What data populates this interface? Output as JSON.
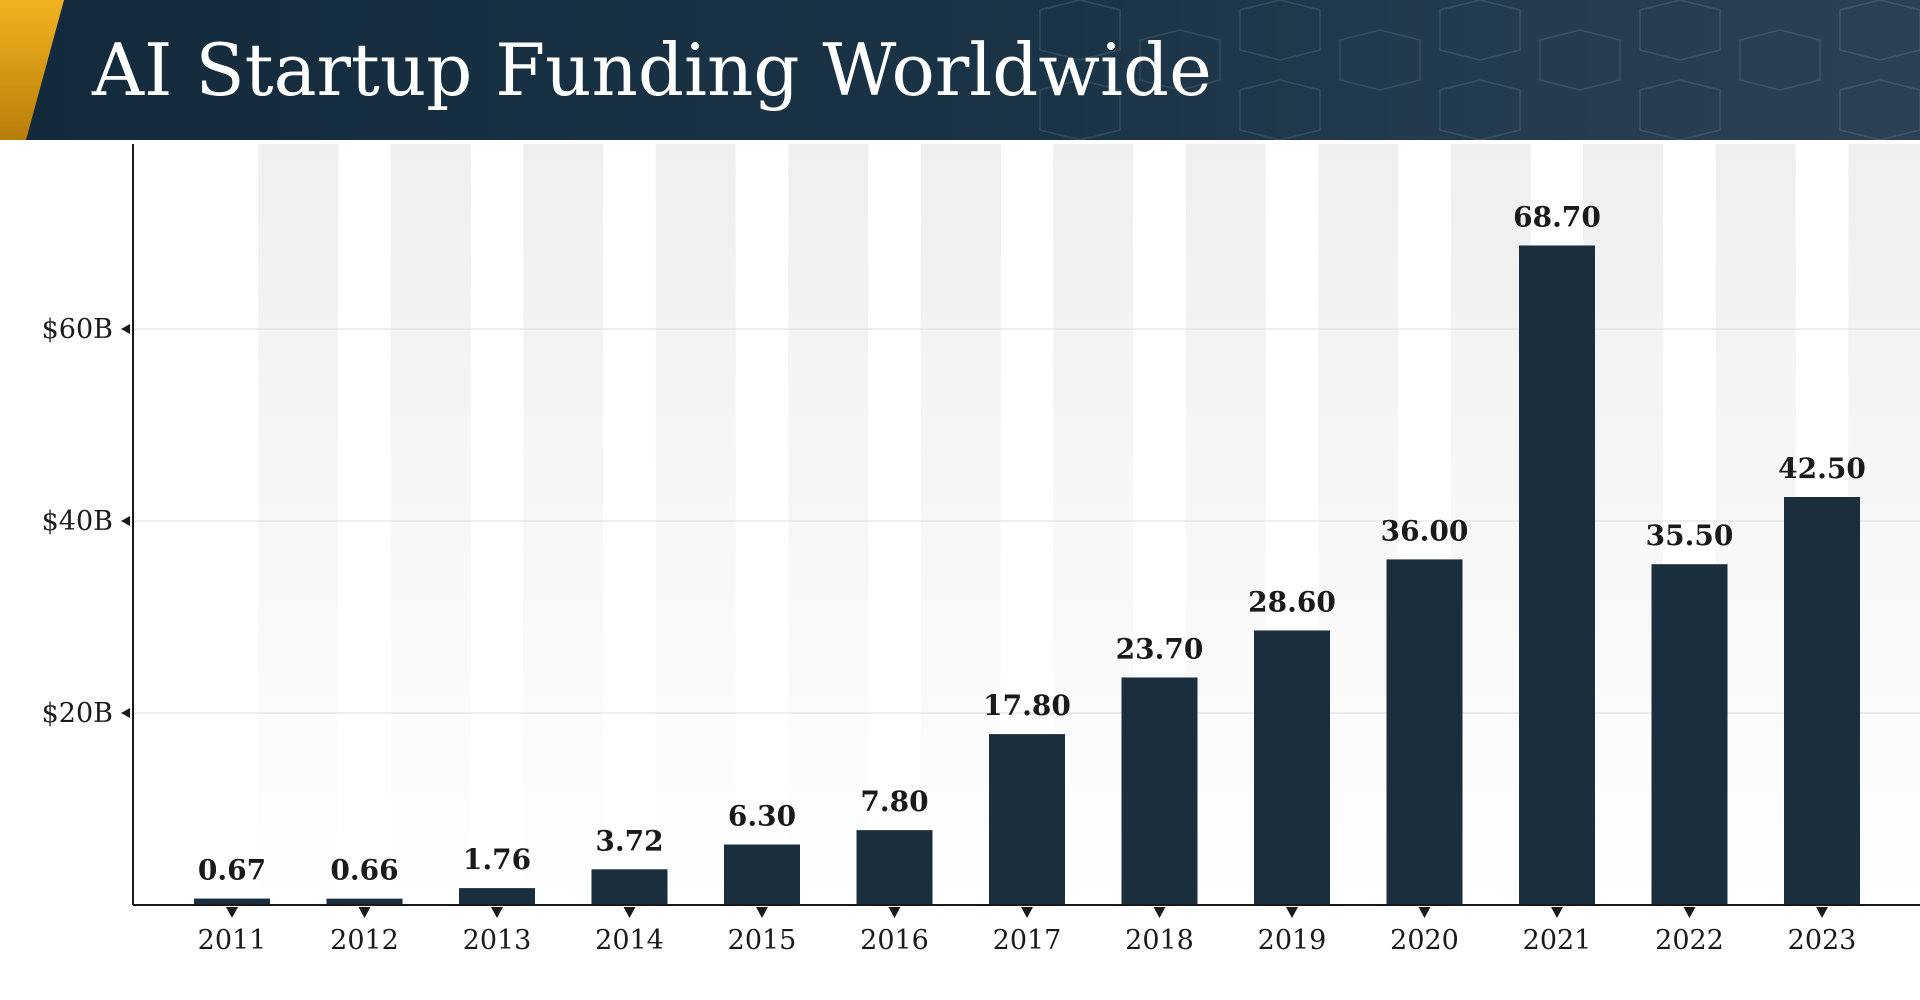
{
  "header": {
    "title": "AI Startup Funding Worldwide"
  },
  "colors": {
    "bar": "#1a2e3e",
    "header_bg": "#1a3447",
    "accent": "#e8a418",
    "gridline": "#e3e3e3",
    "stripe": "#efefef"
  },
  "chart_data": {
    "type": "bar",
    "title": "AI Startup Funding Worldwide",
    "xlabel": "",
    "ylabel": "",
    "categories": [
      "2011",
      "2012",
      "2013",
      "2014",
      "2015",
      "2016",
      "2017",
      "2018",
      "2019",
      "2020",
      "2021",
      "2022",
      "2023"
    ],
    "values": [
      0.67,
      0.66,
      1.76,
      3.72,
      6.3,
      7.8,
      17.8,
      23.7,
      28.6,
      36.0,
      68.7,
      35.5,
      42.5
    ],
    "value_labels": [
      "0.67",
      "0.66",
      "1.76",
      "3.72",
      "6.30",
      "7.80",
      "17.80",
      "23.70",
      "28.60",
      "36.00",
      "68.70",
      "35.50",
      "42.50"
    ],
    "ylim": [
      0,
      80
    ],
    "yticks": [
      20,
      40,
      60
    ],
    "ytick_labels": [
      "$20B",
      "$40B",
      "$60B"
    ],
    "grid": true,
    "legend": "none"
  }
}
